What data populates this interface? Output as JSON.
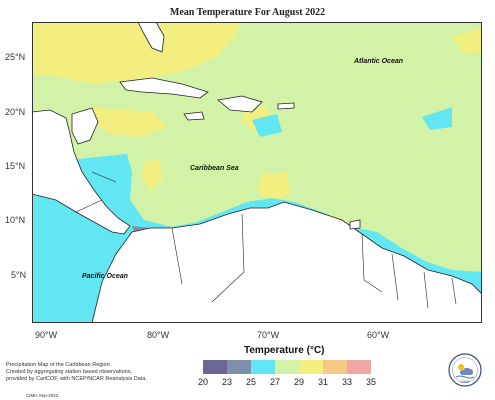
{
  "title": "Mean Temperature For August 2022",
  "map_labels": {
    "atlantic": "Atlantic Ocean",
    "caribbean": "Caribbean Sea",
    "pacific": "Pacific Ocean"
  },
  "lat_ticks": [
    "25°N",
    "20°N",
    "15°N",
    "10°N",
    "5°N"
  ],
  "lon_ticks": [
    "90°W",
    "80°W",
    "70°W",
    "60°W"
  ],
  "legend": {
    "title": "Temperature (°C)",
    "ticks": [
      "20",
      "23",
      "25",
      "27",
      "29",
      "31",
      "33",
      "35"
    ],
    "colors": [
      "#6b6694",
      "#7f8eab",
      "#61e6f2",
      "#d2f3a7",
      "#f2ef80",
      "#f7c985",
      "#f1a7a7"
    ]
  },
  "credit": {
    "lines": [
      "Precipitation Map of the Caribbean Region.",
      "Created by aggregating station based observations,",
      "provided by CariCOF, with NCEP/NCAR Reanalysis Data."
    ],
    "date": "CIMH Sep-2022"
  },
  "logo_text": "CIMH",
  "colors": {
    "land": "#ffffff",
    "warm_sea": "#d2f3a7",
    "hot": "#f2ef80",
    "cool": "#61e6f2",
    "cold": "#7f8eab",
    "coldest": "#6b6694"
  }
}
